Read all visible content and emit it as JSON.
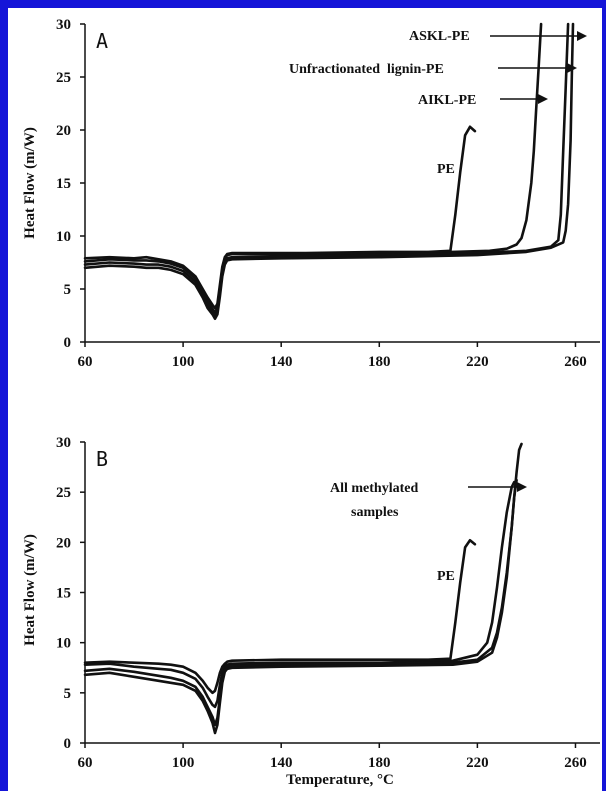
{
  "chart_data": [
    {
      "panel": "A",
      "type": "line",
      "xlabel": "",
      "ylabel": "Heat Flow (m/W)",
      "xlim": [
        60,
        270
      ],
      "ylim": [
        0,
        30
      ],
      "xticks": [
        60,
        100,
        140,
        180,
        220,
        260
      ],
      "yticks": [
        0,
        5,
        10,
        15,
        20,
        25,
        30
      ],
      "grid": false,
      "series": [
        {
          "x": [
            60,
            70,
            80,
            85,
            90,
            95,
            100,
            105,
            108,
            110,
            112,
            113,
            114,
            115,
            116,
            117,
            118,
            120,
            130,
            150,
            180,
            200,
            209,
            211,
            213,
            215,
            217,
            219
          ],
          "y": [
            7.9,
            8.0,
            7.9,
            8.0,
            7.8,
            7.6,
            7.2,
            6.2,
            5.0,
            4.2,
            3.5,
            3.2,
            3.6,
            5.4,
            7.1,
            8.0,
            8.3,
            8.4,
            8.4,
            8.4,
            8.5,
            8.5,
            8.6,
            12.0,
            16.0,
            19.5,
            20.3,
            19.9
          ]
        },
        {
          "x": [
            60,
            70,
            80,
            85,
            90,
            95,
            100,
            105,
            108,
            110,
            112,
            113,
            114,
            115,
            116,
            117,
            118,
            120,
            140,
            180,
            210,
            225,
            232,
            236,
            238,
            240,
            242,
            243,
            244,
            245,
            246
          ],
          "y": [
            7.6,
            7.8,
            7.7,
            7.7,
            7.6,
            7.4,
            7.0,
            6.0,
            4.8,
            3.9,
            3.1,
            2.8,
            3.2,
            5.0,
            6.9,
            7.9,
            8.2,
            8.3,
            8.3,
            8.4,
            8.5,
            8.6,
            8.8,
            9.2,
            9.8,
            11.5,
            15.0,
            18.0,
            22.0,
            26.0,
            30.0
          ]
        },
        {
          "x": [
            60,
            70,
            80,
            85,
            90,
            95,
            100,
            105,
            108,
            110,
            112,
            113,
            114,
            115,
            116,
            117,
            118,
            120,
            140,
            180,
            220,
            240,
            250,
            253,
            254,
            255,
            256,
            257
          ],
          "y": [
            7.3,
            7.5,
            7.4,
            7.3,
            7.3,
            7.1,
            6.7,
            5.7,
            4.4,
            3.5,
            2.8,
            2.5,
            2.9,
            4.6,
            6.5,
            7.6,
            7.9,
            8.0,
            8.1,
            8.2,
            8.4,
            8.6,
            9.0,
            9.6,
            12.0,
            18.0,
            24.0,
            30.0
          ]
        },
        {
          "x": [
            60,
            70,
            80,
            85,
            90,
            95,
            100,
            105,
            108,
            110,
            112,
            113,
            114,
            115,
            116,
            117,
            118,
            120,
            140,
            180,
            220,
            240,
            250,
            255,
            256,
            257,
            258,
            258.5,
            259
          ],
          "y": [
            7.0,
            7.2,
            7.1,
            7.0,
            7.0,
            6.8,
            6.4,
            5.4,
            4.2,
            3.2,
            2.6,
            2.2,
            2.6,
            4.3,
            6.2,
            7.3,
            7.7,
            7.8,
            7.9,
            8.0,
            8.2,
            8.5,
            8.9,
            9.4,
            10.5,
            13.0,
            19.0,
            25.0,
            30.0
          ]
        }
      ],
      "annotations": [
        {
          "text": "PE"
        },
        {
          "text": "AIKL-PE"
        },
        {
          "text": "Unfractionated  lignin-PE"
        },
        {
          "text": "ASKL-PE"
        }
      ],
      "panel_label": "A"
    },
    {
      "panel": "B",
      "type": "line",
      "xlabel": "Temperature, °C",
      "ylabel": "Heat Flow (m/W)",
      "xlim": [
        60,
        270
      ],
      "ylim": [
        0,
        30
      ],
      "xticks": [
        60,
        100,
        140,
        180,
        220,
        260
      ],
      "yticks": [
        0,
        5,
        10,
        15,
        20,
        25,
        30
      ],
      "grid": false,
      "series": [
        {
          "x": [
            60,
            70,
            80,
            90,
            95,
            100,
            105,
            108,
            110,
            112,
            113,
            114,
            115,
            116,
            117,
            118,
            120,
            140,
            180,
            200,
            209,
            211,
            213,
            215,
            217,
            219
          ],
          "y": [
            8.0,
            8.1,
            8.0,
            7.9,
            7.8,
            7.6,
            7.0,
            6.2,
            5.5,
            5.0,
            5.2,
            6.0,
            7.0,
            7.6,
            7.9,
            8.1,
            8.2,
            8.3,
            8.3,
            8.3,
            8.4,
            12.0,
            16.0,
            19.5,
            20.2,
            19.8
          ]
        },
        {
          "x": [
            60,
            70,
            80,
            90,
            95,
            100,
            105,
            108,
            110,
            112,
            113,
            114,
            115,
            116,
            117,
            118,
            120,
            140,
            180,
            210,
            220,
            224,
            226,
            228,
            230,
            232,
            234,
            235
          ],
          "y": [
            7.8,
            7.9,
            7.6,
            7.4,
            7.3,
            7.0,
            6.4,
            5.5,
            4.6,
            3.8,
            3.6,
            4.2,
            5.8,
            7.0,
            7.6,
            7.8,
            7.9,
            8.0,
            8.0,
            8.2,
            8.8,
            10.0,
            12.0,
            15.5,
            19.5,
            23.0,
            25.5,
            26.0
          ]
        },
        {
          "x": [
            60,
            70,
            80,
            90,
            95,
            100,
            105,
            108,
            110,
            112,
            113,
            114,
            115,
            116,
            117,
            118,
            120,
            140,
            180,
            210,
            220,
            226,
            228,
            230,
            232,
            234,
            235,
            236,
            237,
            238
          ],
          "y": [
            7.2,
            7.4,
            7.1,
            6.7,
            6.5,
            6.2,
            5.6,
            4.6,
            3.6,
            2.6,
            1.8,
            2.5,
            4.5,
            6.3,
            7.3,
            7.6,
            7.7,
            7.8,
            7.9,
            8.0,
            8.3,
            9.5,
            11.0,
            13.5,
            17.0,
            21.5,
            24.5,
            27.0,
            29.2,
            29.8
          ]
        },
        {
          "x": [
            60,
            70,
            80,
            90,
            95,
            100,
            105,
            108,
            110,
            112,
            113,
            114,
            115,
            116,
            117,
            118,
            120,
            140,
            180,
            210,
            220,
            226,
            228,
            230,
            232,
            234,
            235,
            236
          ],
          "y": [
            6.8,
            7.0,
            6.6,
            6.2,
            6.0,
            5.8,
            5.2,
            4.2,
            3.2,
            2.0,
            1.0,
            1.8,
            4.0,
            6.0,
            7.1,
            7.4,
            7.5,
            7.6,
            7.7,
            7.8,
            8.1,
            9.0,
            10.5,
            13.0,
            16.5,
            21.5,
            24.5,
            26.2
          ]
        }
      ],
      "annotations": [
        {
          "text": "PE"
        },
        {
          "text": "All methylated"
        },
        {
          "text": "samples"
        }
      ],
      "panel_label": "B"
    }
  ]
}
